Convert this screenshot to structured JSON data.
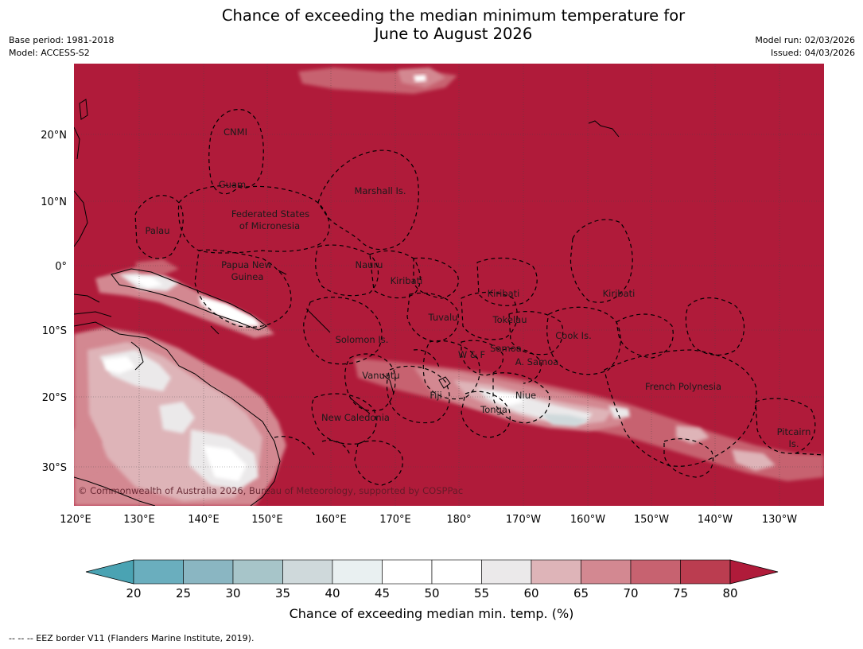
{
  "title": {
    "line1": "Chance of exceeding the median minimum temperature for",
    "line2": "June to August 2026"
  },
  "meta": {
    "base_period": "Base period: 1981-2018",
    "model": "Model: ACCESS-S2",
    "model_run": "Model run: 02/03/2026",
    "issued": "Issued: 04/03/2026"
  },
  "map": {
    "lat_labels": [
      "20°N",
      "10°N",
      "0°",
      "10°S",
      "20°S",
      "30°S"
    ],
    "lon_labels": [
      "120°E",
      "130°E",
      "140°E",
      "150°E",
      "160°E",
      "170°E",
      "180°",
      "170°W",
      "160°W",
      "150°W",
      "140°W",
      "130°W"
    ],
    "region_labels": [
      "CNMI",
      "Guam",
      "Marshall Is.",
      "Federated States",
      "of Micronesia",
      "Palau",
      "Papua New",
      "Guinea",
      "Nauru",
      "Kiribati",
      "Kiribati",
      "Kiribati",
      "Tuvalu",
      "Tokelau",
      "Cook Is.",
      "Solomon Is.",
      "W & F",
      "Samoa",
      "A. Samoa",
      "Vanuatu",
      "Fiji",
      "Niue",
      "French Polynesia",
      "Tonga",
      "New Caledonia",
      "Pitcairn",
      "Is."
    ],
    "copyright": "© Commonwealth of Australia 2026, Bureau of Meteorology, supported by COSPPac",
    "base_color": "#b01b3a"
  },
  "colorbar": {
    "ticks": [
      "20",
      "25",
      "30",
      "35",
      "40",
      "45",
      "50",
      "55",
      "60",
      "65",
      "70",
      "75",
      "80"
    ],
    "colors": [
      "#4aa3b3",
      "#6aaebe",
      "#8ab6c2",
      "#a7c5c9",
      "#cfd9db",
      "#e9f0f1",
      "#ffffff",
      "#ffffff",
      "#ebe9ea",
      "#deb4b8",
      "#d38891",
      "#c76270",
      "#bb3d50",
      "#b01b3a"
    ],
    "label": "Chance of exceeding median min. temp. (%)"
  },
  "legend_note": "--  --  -- EEZ border V11 (Flanders Marine Institute, 2019)."
}
